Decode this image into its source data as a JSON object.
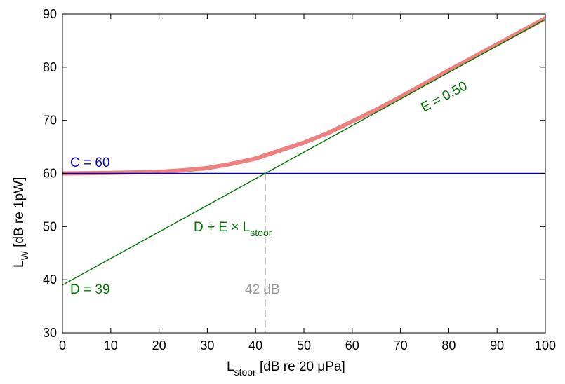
{
  "chart_data": {
    "type": "line",
    "xlim": [
      0,
      100
    ],
    "ylim": [
      30,
      90
    ],
    "x_ticks": [
      0,
      10,
      20,
      30,
      40,
      50,
      60,
      70,
      80,
      90,
      100
    ],
    "y_ticks": [
      30,
      40,
      50,
      60,
      70,
      80,
      90
    ],
    "grid": false,
    "xlabel": {
      "main": "L",
      "sub": "stoor",
      "rest": " [dB  re 20 μPa]"
    },
    "ylabel": {
      "main": "L",
      "sub": "W",
      "rest": " [dB  re 1pW]"
    },
    "parameters": {
      "C": 60,
      "D": 39,
      "E": 0.5
    },
    "series": [
      {
        "key": "combined",
        "color": "#f08080",
        "x": [
          0,
          10,
          20,
          25,
          30,
          35,
          40,
          42,
          45,
          50,
          55,
          60,
          65,
          70,
          80,
          90,
          100
        ],
        "y": [
          60.0,
          60.1,
          60.3,
          60.6,
          61.0,
          61.8,
          62.8,
          63.4,
          64.3,
          65.8,
          67.6,
          69.8,
          72.0,
          74.4,
          79.4,
          84.3,
          89.2
        ]
      },
      {
        "key": "constant",
        "color": "#0000cc",
        "x": [
          0,
          100
        ],
        "y": [
          60,
          60
        ]
      },
      {
        "key": "linear",
        "color": "#007700",
        "x": [
          0,
          100
        ],
        "y": [
          39,
          89
        ]
      }
    ],
    "crossing": {
      "x": 42,
      "y": 60,
      "color": "#999999"
    },
    "annotations": {
      "c_label": "C = 60",
      "d_label": "D = 39",
      "e_label": "E = 0.50",
      "formula": {
        "main": "D + E × L",
        "sub": "stoor"
      },
      "crossing_label": "42 dB"
    }
  }
}
